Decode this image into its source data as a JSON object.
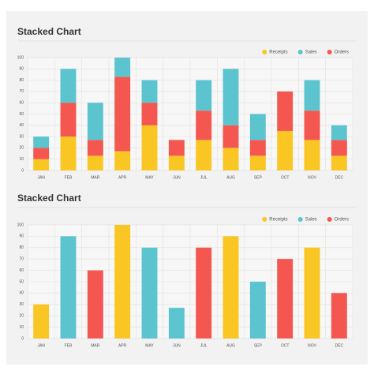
{
  "chart_data": [
    {
      "type": "stacked_bar",
      "title": "Stacked Chart",
      "categories": [
        "JAN",
        "FEB",
        "MAR",
        "APR",
        "MAY",
        "JUN",
        "JUL",
        "AUG",
        "SEP",
        "OCT",
        "NOV",
        "DEC"
      ],
      "series": [
        {
          "name": "Receipts",
          "color": "#f9c623",
          "values": [
            10,
            30,
            13,
            17,
            40,
            13,
            27,
            20,
            13,
            35,
            27,
            13
          ]
        },
        {
          "name": "Sales",
          "color": "#5bc4cf",
          "values": [
            10,
            30,
            33,
            17,
            20,
            0,
            27,
            50,
            23,
            0,
            27,
            13
          ]
        },
        {
          "name": "Orders",
          "color": "#f4574f",
          "values": [
            10,
            30,
            14,
            66,
            20,
            14,
            26,
            20,
            14,
            35,
            26,
            14
          ]
        }
      ],
      "stack_order": [
        0,
        2,
        1
      ],
      "ylim": [
        0,
        100
      ],
      "yticks": [
        0,
        10,
        20,
        30,
        40,
        50,
        60,
        70,
        80,
        90,
        100
      ],
      "grid": true,
      "legend": "top-right"
    },
    {
      "type": "bar",
      "title": "Stacked Chart",
      "categories": [
        "JAN",
        "FEB",
        "MAR",
        "APR",
        "MAY",
        "JUN",
        "JUL",
        "AUG",
        "SEP",
        "OCT",
        "NOV",
        "DEC"
      ],
      "series": [
        {
          "name": "Receipts",
          "color": "#f9c623",
          "values": [
            30,
            null,
            null,
            100,
            null,
            null,
            null,
            90,
            null,
            null,
            80,
            null
          ]
        },
        {
          "name": "Sales",
          "color": "#5bc4cf",
          "values": [
            null,
            90,
            null,
            null,
            80,
            27,
            null,
            null,
            50,
            null,
            null,
            null
          ]
        },
        {
          "name": "Orders",
          "color": "#f4574f",
          "values": [
            null,
            null,
            60,
            null,
            null,
            null,
            80,
            null,
            null,
            70,
            null,
            40
          ]
        }
      ],
      "ylim": [
        0,
        100
      ],
      "yticks": [
        0,
        10,
        20,
        30,
        40,
        50,
        60,
        70,
        80,
        90,
        100
      ],
      "grid": true,
      "legend": "top-right"
    }
  ]
}
